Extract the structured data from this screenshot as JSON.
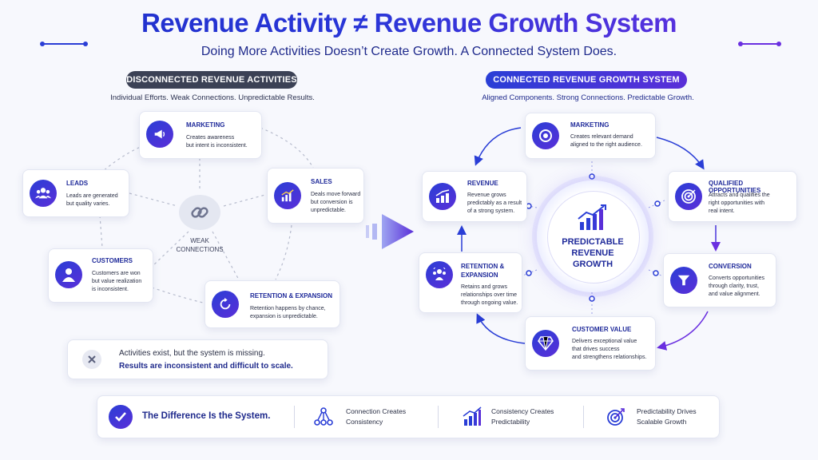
{
  "header": {
    "title": "Revenue Activity ≠ Revenue Growth System",
    "subtitle": "Doing More Activities Doesn’t Create Growth. A Connected System Does."
  },
  "left": {
    "pill": "DISCONNECTED REVENUE ACTIVITIES",
    "subtitle": "Individual Efforts. Weak Connections. Unpredictable Results.",
    "center_label": "WEAK\nCONNECTIONS",
    "cards": {
      "marketing": {
        "title": "MARKETING",
        "desc": "Creates awareness\nbut intent is inconsistent.",
        "icon": "megaphone-icon"
      },
      "leads": {
        "title": "LEADS",
        "desc": "Leads are generated\nbut quality varies.",
        "icon": "people-icon"
      },
      "sales": {
        "title": "SALES",
        "desc": "Deals move forward\nbut conversion is\nunpredictable.",
        "icon": "bar-chart-icon"
      },
      "customers": {
        "title": "CUSTOMERS",
        "desc": "Customers are won\nbut value realization\nis inconsistent.",
        "icon": "user-icon"
      },
      "retention": {
        "title": "RETENTION & EXPANSION",
        "desc": "Retention happens by chance,\nexpansion is unpredictable.",
        "icon": "refresh-icon"
      }
    },
    "missing": {
      "line1": "Activities exist, but the system is missing.",
      "line2": "Results are inconsistent and difficult to scale."
    }
  },
  "right": {
    "pill": "CONNECTED REVENUE GROWTH SYSTEM",
    "subtitle": "Aligned Components. Strong Connections. Predictable Growth.",
    "center": "PREDICTABLE\nREVENUE\nGROWTH",
    "cards": {
      "marketing": {
        "title": "MARKETING",
        "desc": "Creates relevant demand\naligned to the right audience.",
        "icon": "target-gear-icon"
      },
      "qualified": {
        "title": "QUALIFIED OPPORTUNITIES",
        "desc": "Attracts and qualifies the\nright opportunities with\nreal intent.",
        "icon": "target-icon"
      },
      "conversion": {
        "title": "CONVERSION",
        "desc": "Converts opportunities\nthrough clarity, trust,\nand value alignment.",
        "icon": "funnel-icon"
      },
      "customer_value": {
        "title": "CUSTOMER VALUE",
        "desc": "Delivers exceptional value\nthat drives success\nand strengthens relationships.",
        "icon": "diamond-icon"
      },
      "retention": {
        "title": "RETENTION &\nEXPANSION",
        "desc": "Retains and grows\nrelationships over time\nthrough ongoing value.",
        "icon": "team-icon"
      },
      "revenue": {
        "title": "REVENUE",
        "desc": "Revenue grows\npredictably as a result\nof a strong system.",
        "icon": "growth-icon"
      }
    }
  },
  "bottom": {
    "diff": "The Difference Is the System.",
    "item1": "Connection Creates\nConsistency",
    "item2": "Consistency Creates\nPredictability",
    "item3": "Predictability Drives\nScalable Growth"
  },
  "colors": {
    "primary": "#2a3ed6",
    "accent": "#6a2fe0",
    "dark_pill": "#3b4155"
  }
}
